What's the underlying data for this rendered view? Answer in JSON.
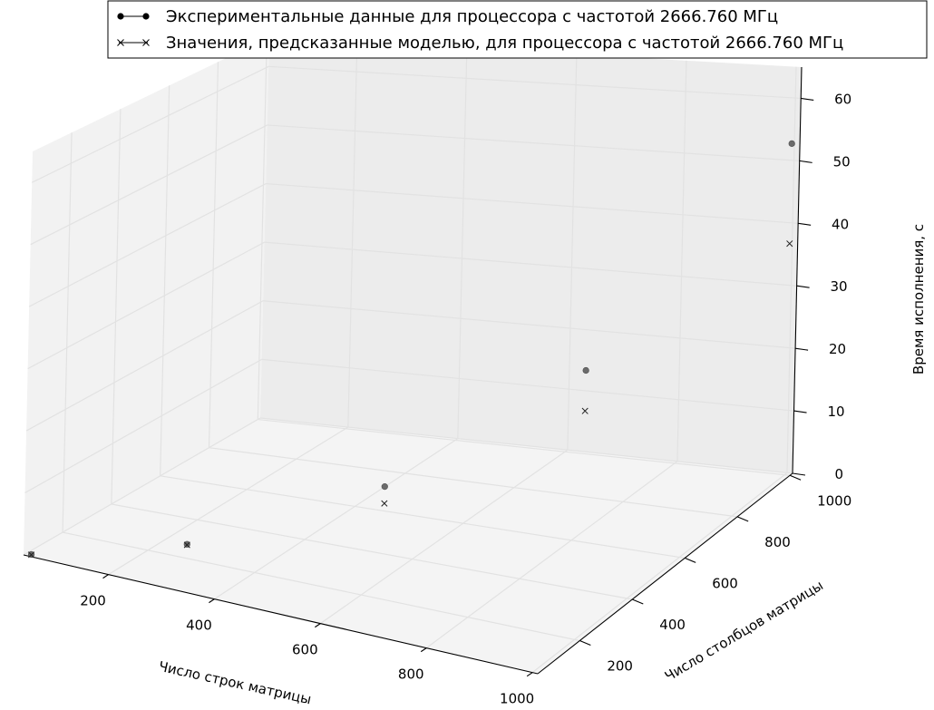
{
  "chart_data": {
    "type": "scatter",
    "projection": "3d",
    "xlabel": "Число строк матрицы",
    "ylabel": "Число столбцов матрицы",
    "zlabel": "Время исполнения, с",
    "x_ticks": [
      "200",
      "400",
      "600",
      "800",
      "1000"
    ],
    "y_ticks": [
      "200",
      "400",
      "600",
      "800",
      "1000"
    ],
    "z_ticks": [
      "0",
      "10",
      "20",
      "30",
      "40",
      "50",
      "60"
    ],
    "xlim": [
      40,
      1010
    ],
    "ylim": [
      40,
      1010
    ],
    "zlim": [
      0,
      65
    ],
    "grid": true,
    "legend_position": "top",
    "series": [
      {
        "name": "Экспериментальные данные для процессора с частотой 2666.760 МГц",
        "marker": "circle",
        "line": "solid",
        "color": "#000000",
        "points": [
          {
            "x": 50,
            "y": 50,
            "z": 0.05
          },
          {
            "x": 250,
            "y": 250,
            "z": 0.6
          },
          {
            "x": 500,
            "y": 500,
            "z": 7.3
          },
          {
            "x": 750,
            "y": 750,
            "z": 22
          },
          {
            "x": 1000,
            "y": 1000,
            "z": 53
          }
        ]
      },
      {
        "name": "Значения, предсказанные моделью, для процессора с частотой 2666.760 МГц",
        "marker": "x",
        "line": "solid",
        "color": "#000000",
        "points": [
          {
            "x": 50,
            "y": 50,
            "z": 0.0
          },
          {
            "x": 250,
            "y": 250,
            "z": 0.5
          },
          {
            "x": 500,
            "y": 500,
            "z": 4.6
          },
          {
            "x": 750,
            "y": 750,
            "z": 15.5
          },
          {
            "x": 1000,
            "y": 1000,
            "z": 37
          }
        ]
      }
    ]
  }
}
